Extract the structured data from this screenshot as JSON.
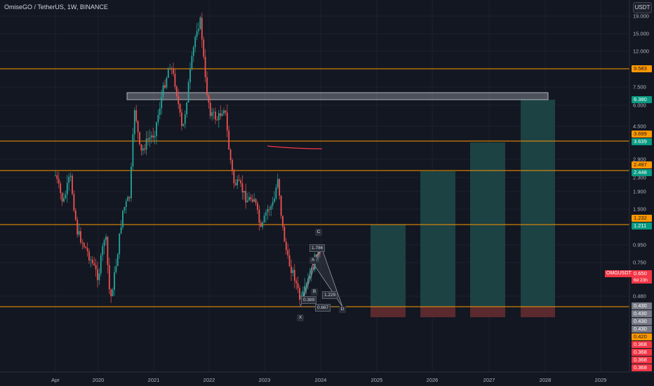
{
  "header": {
    "symbol_title": "OmiseGO / TetherUS, 1W, BINANCE",
    "currency_button": "USDT"
  },
  "price_axis": {
    "ticks": [
      "19.000",
      "15.000",
      "12.000",
      "7.500",
      "6.000",
      "4.500",
      "2.900",
      "2.300",
      "1.900",
      "1.500",
      "0.950",
      "0.750",
      "0.480"
    ]
  },
  "time_axis": {
    "ticks": [
      "Apr",
      "2020",
      "2021",
      "2022",
      "2023",
      "2024",
      "2025",
      "2026",
      "2027",
      "2028",
      "2029"
    ]
  },
  "levels": {
    "orange": [
      "9.583",
      "3.699",
      "2.497",
      "1.232",
      "0.420"
    ],
    "teal": [
      "6.380",
      "3.639",
      "2.448",
      "1.211"
    ],
    "gray": [
      "0.430",
      "0.430",
      "0.430",
      "0.430"
    ],
    "red": [
      "0.368",
      "0.368",
      "0.368",
      "0.368"
    ]
  },
  "last_price": {
    "symbol": "OMGUSDT",
    "value": "0.650",
    "countdown": "6d 23h"
  },
  "pattern": {
    "points": [
      "X",
      "A",
      "B",
      "C",
      "D"
    ],
    "ratios": [
      "1.786",
      "1.229",
      "0.887",
      "0.389"
    ]
  },
  "colors": {
    "background": "#131722",
    "up": "#26a69a",
    "down": "#ef5350",
    "level": "#ff9800",
    "target_zone": "#1e4a4a",
    "stop_zone": "#5a2a2e"
  }
}
